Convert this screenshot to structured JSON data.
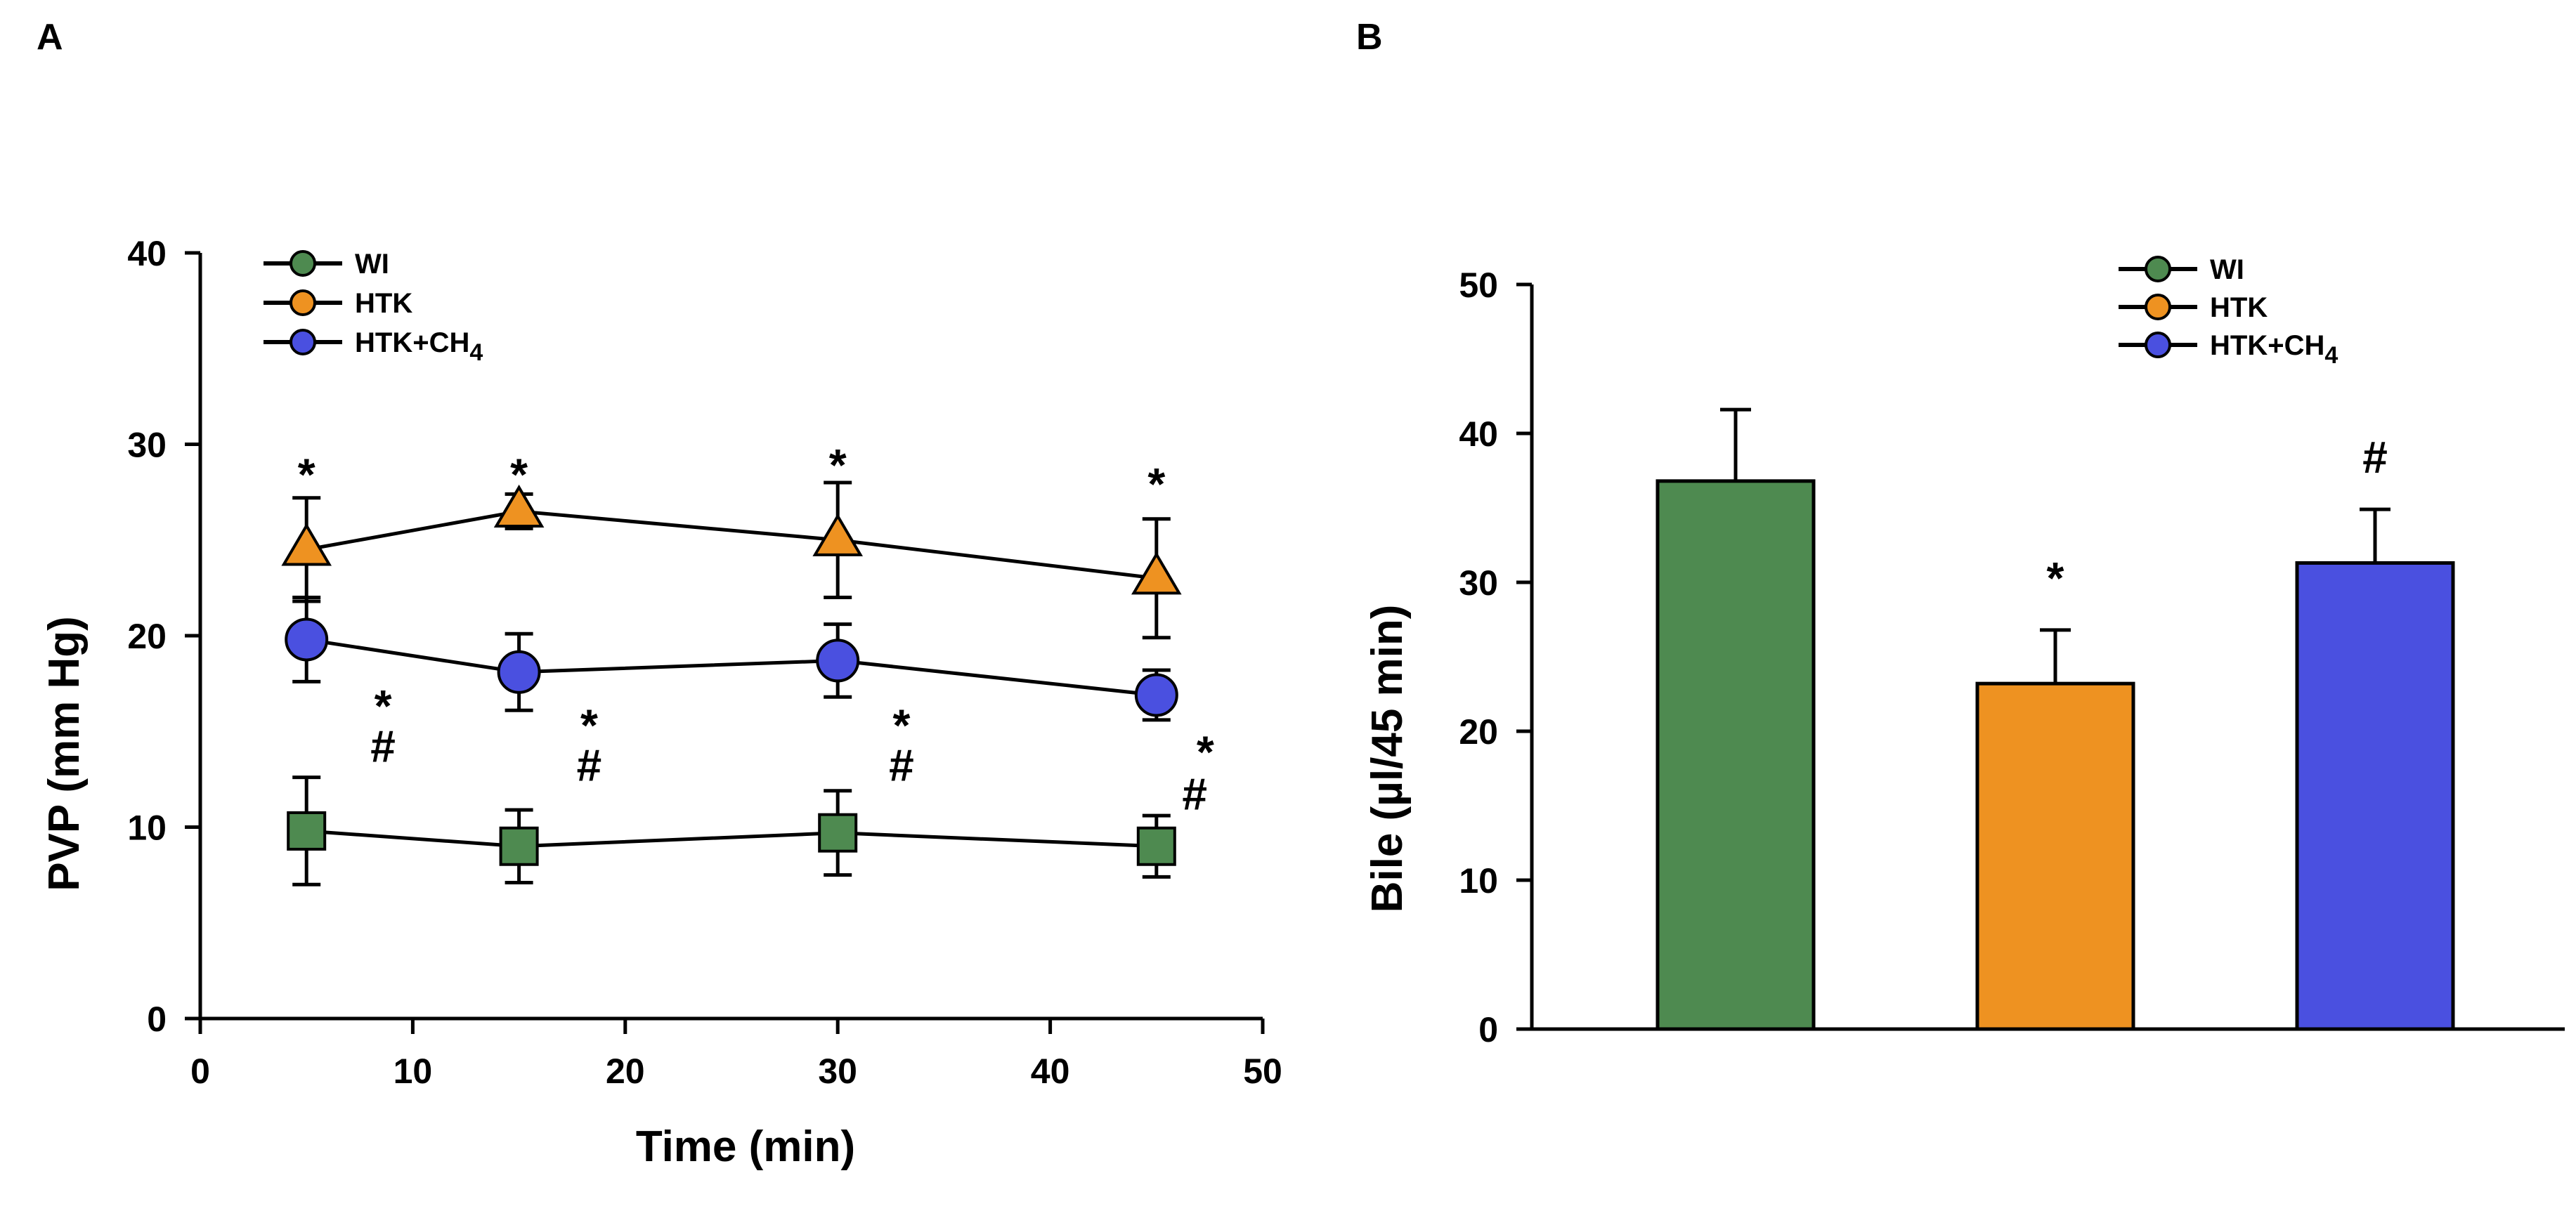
{
  "chart_data": [
    {
      "panel": "A",
      "type": "line",
      "title": "",
      "xlabel": "Time (min)",
      "ylabel": "PVP (mm Hg)",
      "xlim": [
        0,
        50
      ],
      "ylim": [
        0,
        40
      ],
      "xticks": [
        0,
        10,
        20,
        30,
        40,
        50
      ],
      "yticks": [
        0,
        10,
        20,
        30,
        40
      ],
      "legend": [
        {
          "name": "WI",
          "color": "#4E8A50",
          "marker": "circle"
        },
        {
          "name": "HTK",
          "color": "#EE9221",
          "marker": "circle"
        },
        {
          "name": "HTK+CH",
          "sub": "4",
          "color": "#4A50E0",
          "marker": "circle"
        }
      ],
      "series": [
        {
          "name": "HTK",
          "marker": "triangle",
          "color": "#EE9221",
          "x": [
            5,
            15,
            30,
            45
          ],
          "y": [
            24.5,
            26.5,
            25,
            23
          ],
          "err": [
            2.7,
            0.9,
            3.0,
            3.1
          ]
        },
        {
          "name": "HTK+CH4",
          "marker": "circle",
          "color": "#4A50E0",
          "x": [
            5,
            15,
            30,
            45
          ],
          "y": [
            19.8,
            18.1,
            18.7,
            16.9
          ],
          "err": [
            2.2,
            2.0,
            1.9,
            1.3
          ]
        },
        {
          "name": "WI",
          "marker": "square",
          "color": "#4E8A50",
          "x": [
            5,
            15,
            30,
            45
          ],
          "y": [
            9.8,
            9.0,
            9.7,
            9.0
          ],
          "err": [
            2.8,
            1.9,
            2.2,
            1.6
          ]
        }
      ],
      "annotations": [
        {
          "text": "*",
          "x": 5,
          "y": 28.5
        },
        {
          "text": "*",
          "x": 15,
          "y": 28.5
        },
        {
          "text": "*",
          "x": 30,
          "y": 29.0
        },
        {
          "text": "*",
          "x": 45,
          "y": 28.0
        },
        {
          "text": "*",
          "x": 8.6,
          "y": 16.4
        },
        {
          "text": "#",
          "x": 8.6,
          "y": 14.3
        },
        {
          "text": "*",
          "x": 18.3,
          "y": 15.4
        },
        {
          "text": "#",
          "x": 18.3,
          "y": 13.3
        },
        {
          "text": "*",
          "x": 33.0,
          "y": 15.4
        },
        {
          "text": "#",
          "x": 33.0,
          "y": 13.3
        },
        {
          "text": "*",
          "x": 47.3,
          "y": 14.0
        },
        {
          "text": "#",
          "x": 46.8,
          "y": 11.8
        }
      ]
    },
    {
      "panel": "B",
      "type": "bar",
      "title": "",
      "xlabel": "",
      "ylabel": "Bile (µl/45 min)",
      "ylim": [
        0,
        50
      ],
      "yticks": [
        0,
        10,
        20,
        30,
        40,
        50
      ],
      "legend": [
        {
          "name": "WI",
          "color": "#4E8A50",
          "marker": "circle"
        },
        {
          "name": "HTK",
          "color": "#EE9221",
          "marker": "circle"
        },
        {
          "name": "HTK+CH",
          "sub": "4",
          "color": "#4A50E0",
          "marker": "circle"
        }
      ],
      "categories": [
        "WI",
        "HTK",
        "HTK+CH4"
      ],
      "values": [
        36.8,
        23.2,
        31.3
      ],
      "err": [
        4.8,
        3.6,
        3.6
      ],
      "colors": [
        "#4E8A50",
        "#EE9221",
        "#4A50E0"
      ],
      "annotations": [
        {
          "text": "*",
          "bar": 1
        },
        {
          "text": "#",
          "bar": 2
        }
      ]
    }
  ]
}
